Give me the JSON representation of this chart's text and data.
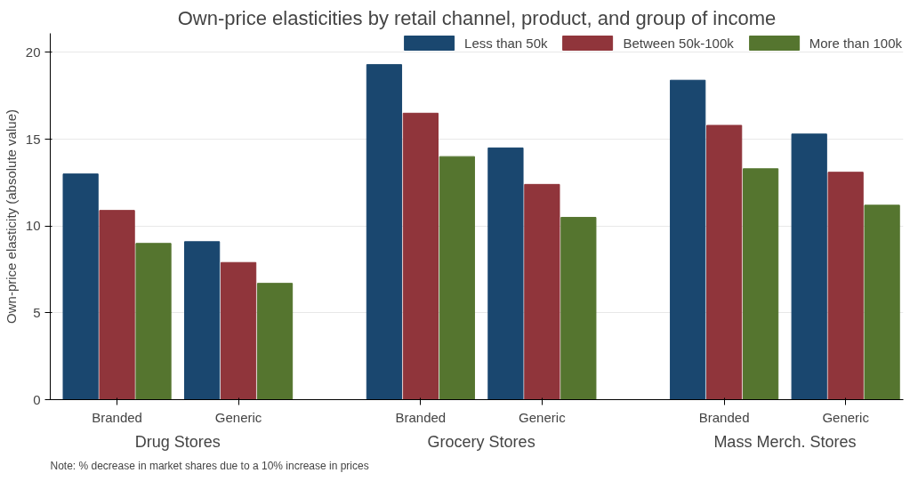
{
  "chart_data": {
    "type": "bar",
    "title": "Own-price elasticities by retail channel, product, and group of income",
    "ylabel": "Own-price elasticity (absolute value)",
    "categories": [
      "Branded",
      "Generic",
      "Branded",
      "Generic",
      "Branded",
      "Generic"
    ],
    "series": [
      {
        "name": "Less than 50k",
        "color": "#1a476f",
        "values": [
          13.0,
          9.1,
          19.3,
          14.5,
          18.4,
          15.3
        ]
      },
      {
        "name": "Between 50k-100k",
        "color": "#90353b",
        "values": [
          10.9,
          7.9,
          16.5,
          12.4,
          15.8,
          13.1
        ]
      },
      {
        "name": "More than 100k",
        "color": "#55752f",
        "values": [
          9.0,
          6.7,
          14.0,
          10.5,
          13.3,
          11.2
        ]
      }
    ],
    "ylim": [
      0,
      21.1
    ],
    "yticks": [
      0,
      5,
      10,
      15,
      20
    ],
    "grid": "y",
    "legend": "top right",
    "annotations": [
      "Drug Stores",
      "Grocery Stores",
      "Mass Merch. Stores",
      "Note: % decrease in market shares due to a 10% increase in prices"
    ]
  }
}
